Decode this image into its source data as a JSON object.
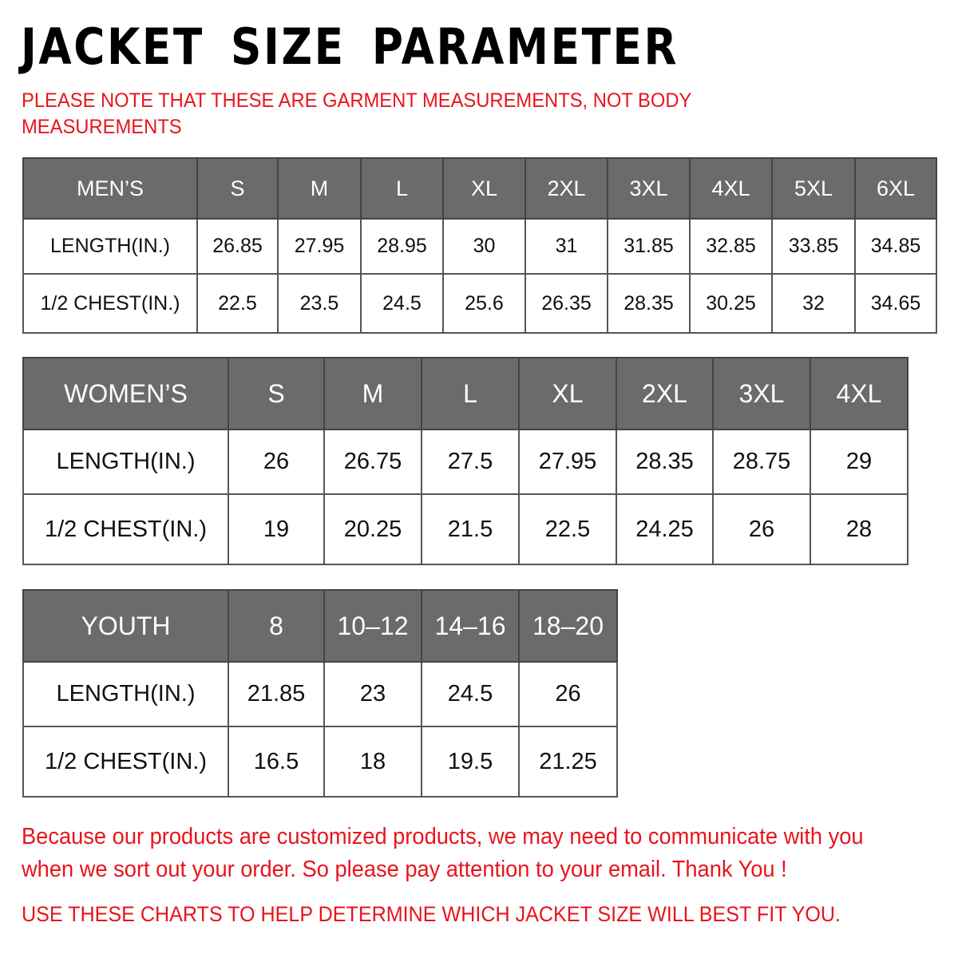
{
  "title": "JACKET SIZE PARAMETER",
  "note": "PLEASE NOTE THAT THESE ARE GARMENT MEASUREMENTS, NOT BODY MEASUREMENTS",
  "colors": {
    "header_bg": "#6b6b6b",
    "accent_red": "#e8141c"
  },
  "tables": {
    "men": {
      "header": [
        "MEN’S",
        "S",
        "M",
        "L",
        "XL",
        "2XL",
        "3XL",
        "4XL",
        "5XL",
        "6XL"
      ],
      "rows": [
        [
          "LENGTH(IN.)",
          "26.85",
          "27.95",
          "28.95",
          "30",
          "31",
          "31.85",
          "32.85",
          "33.85",
          "34.85"
        ],
        [
          "1/2 CHEST(IN.)",
          "22.5",
          "23.5",
          "24.5",
          "25.6",
          "26.35",
          "28.35",
          "30.25",
          "32",
          "34.65"
        ]
      ]
    },
    "women": {
      "header": [
        "WOMEN’S",
        "S",
        "M",
        "L",
        "XL",
        "2XL",
        "3XL",
        "4XL"
      ],
      "rows": [
        [
          "LENGTH(IN.)",
          "26",
          "26.75",
          "27.5",
          "27.95",
          "28.35",
          "28.75",
          "29"
        ],
        [
          "1/2 CHEST(IN.)",
          "19",
          "20.25",
          "21.5",
          "22.5",
          "24.25",
          "26",
          "28"
        ]
      ]
    },
    "youth": {
      "header": [
        "YOUTH",
        "8",
        "10–12",
        "14–16",
        "18–20"
      ],
      "rows": [
        [
          "LENGTH(IN.)",
          "21.85",
          "23",
          "24.5",
          "26"
        ],
        [
          "1/2 CHEST(IN.)",
          "16.5",
          "18",
          "19.5",
          "21.25"
        ]
      ]
    }
  },
  "footer": {
    "message": "Because our products are customized products, we may need to communicate with you when we sort out your order. So please pay attention to your email. Thank You !",
    "advice": "USE THESE CHARTS TO HELP DETERMINE WHICH JACKET SIZE WILL BEST FIT YOU."
  }
}
